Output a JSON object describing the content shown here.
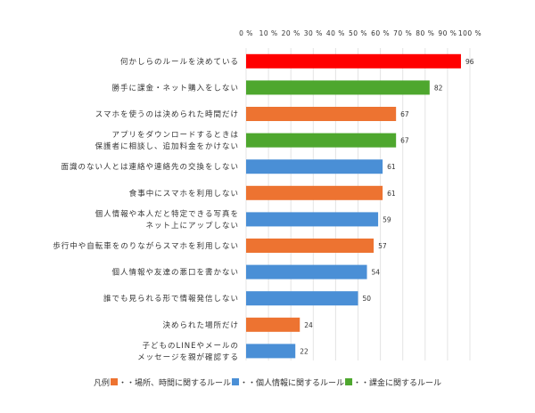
{
  "chart_data": {
    "type": "bar",
    "orientation": "horizontal",
    "categories": [
      [
        "何かしらのルールを決めている"
      ],
      [
        "勝手に課金・ネット購入をしない"
      ],
      [
        "スマホを使うのは決められた時間だけ"
      ],
      [
        "アプリをダウンロードするときは",
        "保護者に相談し、追加料金をかけない"
      ],
      [
        "面識のない人とは連絡や連絡先の交換をしない"
      ],
      [
        "食事中にスマホを利用しない"
      ],
      [
        "個人情報や本人だと特定できる写真を",
        "ネット上にアップしない"
      ],
      [
        "歩行中や自転車をのりながらスマホを利用しない"
      ],
      [
        "個人情報や友達の悪口を書かない"
      ],
      [
        "誰でも見られる形で情報発信しない"
      ],
      [
        "決められた場所だけ"
      ],
      [
        "子どものLINEやメールの",
        "メッセージを親が確認する"
      ]
    ],
    "values": [
      96,
      82,
      67,
      67,
      61,
      61,
      59,
      57,
      54,
      50,
      24,
      22
    ],
    "groups": [
      "total",
      "charge",
      "place_time",
      "charge",
      "personal",
      "place_time",
      "personal",
      "place_time",
      "personal",
      "personal",
      "place_time",
      "personal"
    ],
    "colors": {
      "total": "#ff0000",
      "charge": "#4ea72e",
      "place_time": "#ed7331",
      "personal": "#4a8fd6"
    },
    "xlim": [
      0,
      100
    ],
    "xticks": [
      "0 %",
      "10 %",
      "20 %",
      "30 %",
      "40 %",
      "50 %",
      "60 %",
      "70 %",
      "80 %",
      "90 %",
      "100 %"
    ],
    "grid": true,
    "legend": {
      "position": "bottom",
      "title": "凡例",
      "entries": [
        {
          "group": "place_time",
          "label": "・・場所、時間に関するルール"
        },
        {
          "group": "personal",
          "label": "・・個人情報に関するルール"
        },
        {
          "group": "charge",
          "label": "・・課金に関するルール"
        }
      ]
    }
  }
}
